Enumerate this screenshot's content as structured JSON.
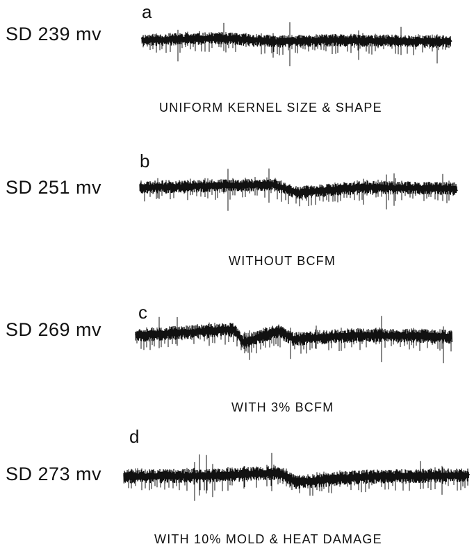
{
  "chart_data": [
    {
      "type": "line",
      "panel_label": "a",
      "sd_label": "SD 239 mv",
      "caption": "UNIFORM KERNEL SIZE & SHAPE",
      "sd_mv": 239
    },
    {
      "type": "line",
      "panel_label": "b",
      "sd_label": "SD 251 mv",
      "caption": "WITHOUT BCFM",
      "sd_mv": 251
    },
    {
      "type": "line",
      "panel_label": "c",
      "sd_label": "SD 269 mv",
      "caption": "WITH 3% BCFM",
      "sd_mv": 269
    },
    {
      "type": "line",
      "panel_label": "d",
      "sd_label": "SD 273 mv",
      "caption": "WITH 10% MOLD & HEAT DAMAGE",
      "sd_mv": 273
    }
  ],
  "colors": {
    "trace": "#111111",
    "background": "#ffffff"
  }
}
